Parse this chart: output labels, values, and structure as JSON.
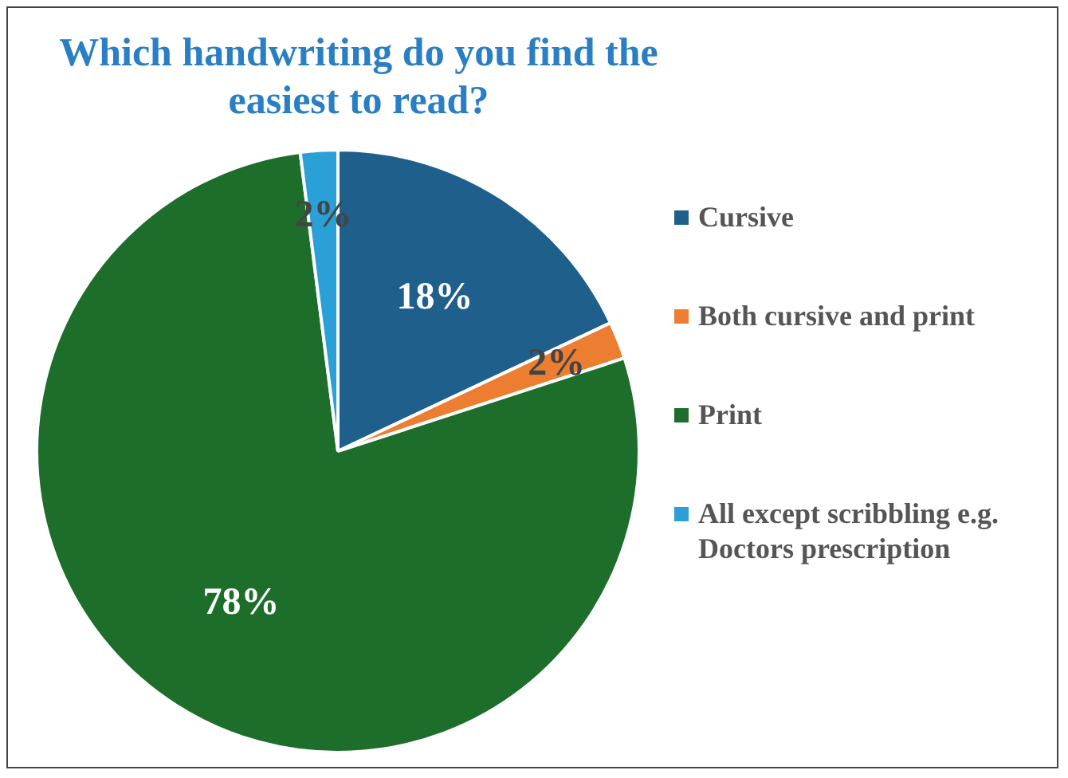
{
  "chart_data": {
    "type": "pie",
    "title": "Which handwriting do you find the easiest to read?",
    "categories": [
      "Cursive",
      "Both cursive and print",
      "Print",
      "All except scribbling e.g. Doctors prescription"
    ],
    "values": [
      18,
      2,
      78,
      2
    ],
    "colors": [
      "#1f5f8c",
      "#ed7d31",
      "#1e6e2b",
      "#2aa0d6"
    ],
    "value_labels": [
      "18%",
      "2%",
      "78%",
      "2%"
    ],
    "legend": "right"
  }
}
